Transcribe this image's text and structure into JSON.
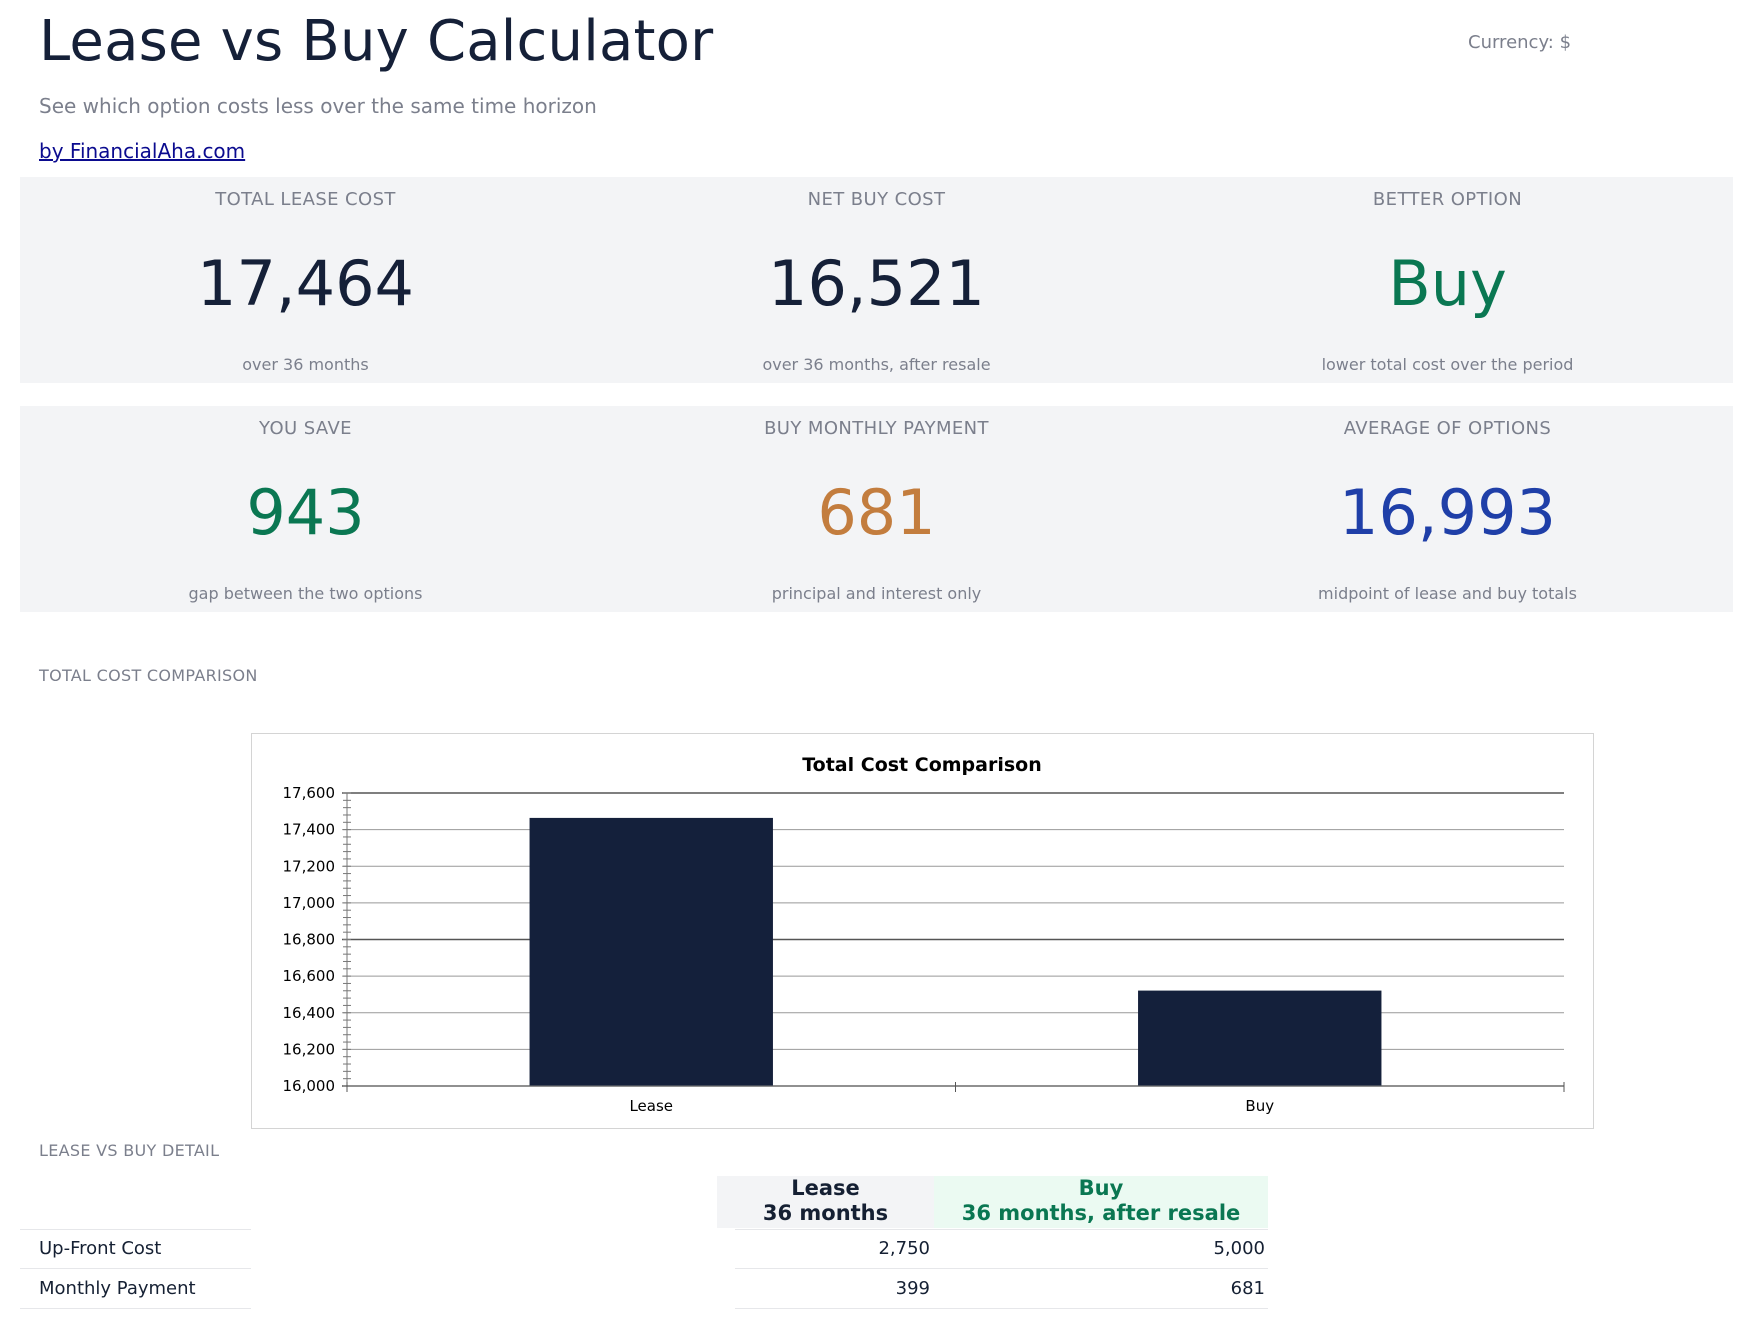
{
  "header": {
    "title": "Lease vs Buy Calculator",
    "subtitle": "See which option costs less over the same time horizon",
    "byline": "by FinancialAha.com",
    "currency": "Currency: $"
  },
  "cards": [
    {
      "label": "TOTAL LEASE COST",
      "value": "17,464",
      "note": "over 36 months",
      "color": "#152038"
    },
    {
      "label": "NET BUY COST",
      "value": "16,521",
      "note": "over 36 months, after resale",
      "color": "#152038"
    },
    {
      "label": "BETTER OPTION",
      "value": "Buy",
      "note": "lower total cost over the period",
      "color": "#0a7752"
    },
    {
      "label": "YOU SAVE",
      "value": "943",
      "note": "gap between the two options",
      "color": "#0a7752"
    },
    {
      "label": "BUY MONTHLY PAYMENT",
      "value": "681",
      "note": "principal and interest only",
      "color": "#c37d3e"
    },
    {
      "label": "AVERAGE OF OPTIONS",
      "value": "16,993",
      "note": "midpoint of lease and buy totals",
      "color": "#1f3fa8"
    }
  ],
  "sections": {
    "chart_label": "TOTAL COST COMPARISON",
    "detail_label": "LEASE VS BUY DETAIL"
  },
  "chart_data": {
    "type": "bar",
    "title": "Total Cost Comparison",
    "categories": [
      "Lease",
      "Buy"
    ],
    "values": [
      17464,
      16521
    ],
    "ylim": [
      16000,
      17600
    ],
    "yticks": [
      16000,
      16200,
      16400,
      16600,
      16800,
      17000,
      17200,
      17400,
      17600
    ],
    "ytick_labels": [
      "16,000",
      "16,200",
      "16,400",
      "16,600",
      "16,800",
      "17,000",
      "17,200",
      "17,400",
      "17,600"
    ],
    "grid": true,
    "bar_color": "#14203b"
  },
  "detail": {
    "columns": [
      {
        "line1": "Lease",
        "line2": "36 months"
      },
      {
        "line1": "Buy",
        "line2": "36 months, after resale"
      }
    ],
    "rows": [
      {
        "label": "Up-Front Cost",
        "lease": "2,750",
        "buy": "5,000"
      },
      {
        "label": "Monthly Payment",
        "lease": "399",
        "buy": "681"
      }
    ]
  }
}
